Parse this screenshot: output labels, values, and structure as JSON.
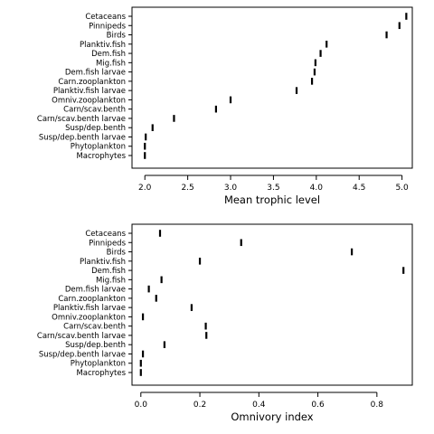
{
  "chart_data": [
    {
      "type": "dot",
      "xlabel": "Mean trophic level",
      "xlim": [
        1.85,
        5.12
      ],
      "xticks": [
        2.0,
        2.5,
        3.0,
        3.5,
        4.0,
        4.5,
        5.0
      ],
      "xtick_labels": [
        "2.0",
        "2.5",
        "3.0",
        "3.5",
        "4.0",
        "4.5",
        "5.0"
      ],
      "categories": [
        "Cetaceans",
        "Pinnipeds",
        "Birds",
        "Planktiv.fish",
        "Dem.fish",
        "Mig.fish",
        "Dem.fish larvae",
        "Carn.zooplankton",
        "Planktiv.fish larvae",
        "Omniv.zooplankton",
        "Carn/scav.benth",
        "Carn/scav.benth larvae",
        "Susp/dep.benth",
        "Susp/dep.benth larvae",
        "Phytoplankton",
        "Macrophytes"
      ],
      "values": [
        5.05,
        4.97,
        4.82,
        4.12,
        4.05,
        3.99,
        3.98,
        3.95,
        3.77,
        3.0,
        2.83,
        2.34,
        2.09,
        2.01,
        2.0,
        2.0
      ]
    },
    {
      "type": "dot",
      "xlabel": "Omnivory index",
      "xlim": [
        -0.03,
        0.92
      ],
      "xticks": [
        0.0,
        0.2,
        0.4,
        0.6,
        0.8
      ],
      "xtick_labels": [
        "0.0",
        "0.2",
        "0.4",
        "0.6",
        "0.8"
      ],
      "categories": [
        "Cetaceans",
        "Pinnipeds",
        "Birds",
        "Planktiv.fish",
        "Dem.fish",
        "Mig.fish",
        "Dem.fish larvae",
        "Carn.zooplankton",
        "Planktiv.fish larvae",
        "Omniv.zooplankton",
        "Carn/scav.benth",
        "Carn/scav.benth larvae",
        "Susp/dep.benth",
        "Susp/dep.benth larvae",
        "Phytoplankton",
        "Macrophytes"
      ],
      "values": [
        0.065,
        0.34,
        0.715,
        0.2,
        0.89,
        0.07,
        0.027,
        0.052,
        0.172,
        0.007,
        0.22,
        0.222,
        0.08,
        0.007,
        0.0,
        0.0
      ]
    }
  ]
}
